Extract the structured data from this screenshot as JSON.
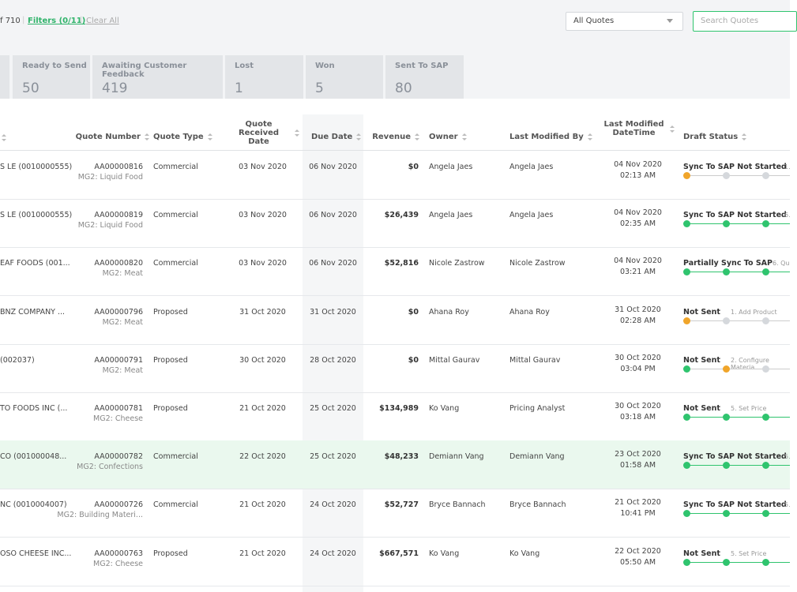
{
  "toolbar": {
    "count": "f 710",
    "filters": "Filters (0/11)",
    "clear": "Clear All",
    "view": "All Quotes",
    "search_placeholder": "Search Quotes"
  },
  "tabs": [
    {
      "label": "Ready to Send",
      "count": "50"
    },
    {
      "label": "Awaiting Customer Feedback",
      "count": "419"
    },
    {
      "label": "Lost",
      "count": "1"
    },
    {
      "label": "Won",
      "count": "5"
    },
    {
      "label": "Sent To SAP",
      "count": "80"
    }
  ],
  "table": {
    "columns": [
      "Quote Number",
      "Quote Type",
      "Quote Received Date",
      "Due Date",
      "Revenue",
      "Owner",
      "Last Modified By",
      "Last Modified DateTime",
      "Draft Status"
    ],
    "rows": [
      {
        "customer": "S LE (0010000555)",
        "quote_number": "AA00000816",
        "material_group": "MG2: Liquid Food",
        "quote_type": "Commercial",
        "received": "03 Nov 2020",
        "due": "06 Nov 2020",
        "revenue": "$0",
        "owner": "Angela Jaes",
        "modified_by": "Angela Jaes",
        "modified_at": "04 Nov 2020 02:13 AM",
        "draft_status": "Sync To SAP Not Started",
        "step": "1.",
        "dot_colors": [
          "#f0a52a",
          "#d5d8dc",
          "#d5d8dc"
        ]
      },
      {
        "customer": "S LE (0010000555)",
        "quote_number": "AA00000819",
        "material_group": "MG2: Liquid Food",
        "quote_type": "Commercial",
        "received": "03 Nov 2020",
        "due": "06 Nov 2020",
        "revenue": "$26,439",
        "owner": "Angela Jaes",
        "modified_by": "Angela Jaes",
        "modified_at": "04 Nov 2020 02:35 AM",
        "draft_status": "Sync To SAP Not Started",
        "step": "6.",
        "dot_colors": [
          "#2fc46e",
          "#2fc46e",
          "#2fc46e"
        ]
      },
      {
        "customer": "EAF FOODS (001...",
        "quote_number": "AA00000820",
        "material_group": "MG2: Meat",
        "quote_type": "Commercial",
        "received": "03 Nov 2020",
        "due": "06 Nov 2020",
        "revenue": "$52,816",
        "owner": "Nicole Zastrow",
        "modified_by": "Nicole Zastrow",
        "modified_at": "04 Nov 2020 03:21 AM",
        "draft_status": "Partially Sync To SAP",
        "step": "6. Qu",
        "dot_colors": [
          "#2fc46e",
          "#2fc46e",
          "#2fc46e"
        ]
      },
      {
        "customer": "BNZ COMPANY ...",
        "quote_number": "AA00000796",
        "material_group": "MG2: Meat",
        "quote_type": "Proposed",
        "received": "31 Oct 2020",
        "due": "31 Oct 2020",
        "revenue": "$0",
        "owner": "Ahana Roy",
        "modified_by": "Ahana Roy",
        "modified_at": "31 Oct 2020 02:28 AM",
        "draft_status": "Not Sent",
        "step": "1. Add Product",
        "dot_colors": [
          "#f0a52a",
          "#d5d8dc",
          "#d5d8dc"
        ]
      },
      {
        "customer": "(002037)",
        "quote_number": "AA00000791",
        "material_group": "MG2: Meat",
        "quote_type": "Proposed",
        "received": "30 Oct 2020",
        "due": "28 Oct 2020",
        "revenue": "$0",
        "owner": "Mittal Gaurav",
        "modified_by": "Mittal Gaurav",
        "modified_at": "30 Oct 2020 03:04 PM",
        "draft_status": "Not Sent",
        "step": "2. Configure Materia",
        "dot_colors": [
          "#2fc46e",
          "#f0a52a",
          "#d5d8dc"
        ]
      },
      {
        "customer": "TO FOODS INC (...",
        "quote_number": "AA00000781",
        "material_group": "MG2: Cheese",
        "quote_type": "Proposed",
        "received": "21 Oct 2020",
        "due": "25 Oct 2020",
        "revenue": "$134,989",
        "owner": "Ko Vang",
        "modified_by": "Pricing Analyst",
        "modified_at": "30 Oct 2020 03:18 AM",
        "draft_status": "Not Sent",
        "step": "5. Set Price",
        "dot_colors": [
          "#2fc46e",
          "#2fc46e",
          "#2fc46e"
        ]
      },
      {
        "customer": "CO (001000048...",
        "quote_number": "AA00000782",
        "material_group": "MG2: Confections",
        "quote_type": "Commercial",
        "received": "22 Oct 2020",
        "due": "25 Oct 2020",
        "revenue": "$48,233",
        "owner": "Demiann Vang",
        "modified_by": "Demiann Vang",
        "modified_at": "23 Oct 2020 01:58 AM",
        "draft_status": "Sync To SAP Not Started",
        "step": "5.",
        "dot_colors": [
          "#2fc46e",
          "#2fc46e",
          "#2fc46e"
        ]
      },
      {
        "customer": "NC (0010004007)",
        "quote_number": "AA00000726",
        "material_group": "MG2: Building Materi...",
        "quote_type": "Commercial",
        "received": "21 Oct 2020",
        "due": "24 Oct 2020",
        "revenue": "$52,727",
        "owner": "Bryce Bannach",
        "modified_by": "Bryce Bannach",
        "modified_at": "21 Oct 2020 10:41 PM",
        "draft_status": "Sync To SAP Not Started",
        "step": "5.",
        "dot_colors": [
          "#2fc46e",
          "#2fc46e",
          "#2fc46e"
        ]
      },
      {
        "customer": "OSO CHEESE INC...",
        "quote_number": "AA00000763",
        "material_group": "MG2: Cheese",
        "quote_type": "Proposed",
        "received": "21 Oct 2020",
        "due": "24 Oct 2020",
        "revenue": "$667,571",
        "owner": "Ko Vang",
        "modified_by": "Ko Vang",
        "modified_at": "22 Oct 2020 05:50 AM",
        "draft_status": "Not Sent",
        "step": "5. Set Price",
        "dot_colors": [
          "#2fc46e",
          "#2fc46e",
          "#2fc46e"
        ]
      }
    ]
  }
}
